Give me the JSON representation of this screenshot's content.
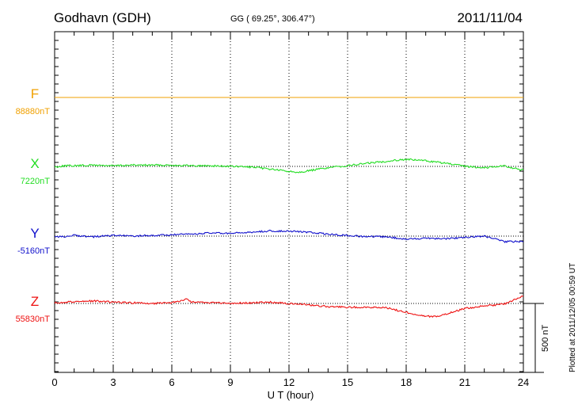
{
  "header": {
    "station": "Godhavn (GDH)",
    "coords": "GG ( 69.25°, 306.47°)",
    "date": "2011/11/04"
  },
  "plotted_note": "Plotted at 2011/12/05 00:59 UT",
  "scale_label": "500 nT",
  "colors": {
    "F": "#f0a000",
    "X": "#22dd22",
    "Y": "#1010cc",
    "Z": "#ee1111"
  },
  "chart_data": {
    "type": "line",
    "xlabel": "U T (hour)",
    "ylabel": "",
    "xlim": [
      0,
      24
    ],
    "ylim": [],
    "x_ticks": [
      "0",
      "3",
      "6",
      "9",
      "12",
      "15",
      "18",
      "21",
      "24"
    ],
    "grid": true,
    "series": [
      {
        "name": "F",
        "baseline_label": "88880nT",
        "unit": "nT",
        "x": [
          0,
          1,
          3,
          6,
          9,
          12,
          15,
          18,
          21,
          23,
          24
        ],
        "values": [
          0,
          0,
          0,
          0,
          0,
          0,
          0,
          0,
          0,
          0,
          0
        ]
      },
      {
        "name": "X",
        "baseline_label": "7220nT",
        "unit": "nT",
        "x": [
          0,
          0.5,
          1,
          2,
          3,
          4,
          5,
          6,
          7,
          8,
          9,
          10,
          11,
          11.5,
          12,
          12.5,
          13,
          14,
          15,
          16,
          17,
          17.5,
          18,
          18.5,
          19,
          20,
          21,
          22,
          23,
          23.5,
          24
        ],
        "values": [
          -5,
          5,
          5,
          10,
          5,
          10,
          10,
          10,
          5,
          5,
          0,
          -5,
          -20,
          -30,
          -40,
          -45,
          -35,
          -10,
          5,
          25,
          40,
          50,
          55,
          50,
          45,
          25,
          0,
          -10,
          5,
          -15,
          -30
        ]
      },
      {
        "name": "Y",
        "baseline_label": "-5160nT",
        "unit": "nT",
        "x": [
          0,
          1,
          2,
          3,
          4,
          5,
          6,
          7,
          8,
          9,
          10,
          11,
          12,
          13,
          14,
          15,
          16,
          17,
          18,
          19,
          20,
          21,
          22,
          22.5,
          23,
          24
        ],
        "values": [
          -10,
          5,
          -5,
          5,
          0,
          5,
          10,
          15,
          25,
          20,
          30,
          40,
          40,
          30,
          15,
          5,
          -5,
          -5,
          -25,
          -15,
          -20,
          -10,
          0,
          -20,
          -45,
          -40
        ]
      },
      {
        "name": "Z",
        "baseline_label": "55830nT",
        "unit": "nT",
        "x": [
          0,
          0.5,
          1,
          2,
          3,
          4,
          5,
          6,
          6.8,
          7,
          7.5,
          8,
          9,
          10,
          11,
          12,
          13,
          14,
          15,
          16,
          17,
          18,
          19,
          19.5,
          20,
          21,
          22,
          23,
          23.5,
          24
        ],
        "values": [
          5,
          10,
          15,
          20,
          10,
          5,
          0,
          5,
          35,
          10,
          10,
          5,
          0,
          5,
          10,
          0,
          -10,
          -25,
          -30,
          -30,
          -35,
          -70,
          -100,
          -105,
          -85,
          -40,
          -20,
          -5,
          25,
          60
        ]
      }
    ]
  }
}
